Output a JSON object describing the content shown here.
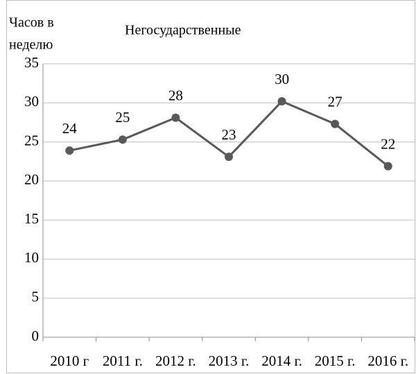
{
  "chart_data": {
    "type": "line",
    "title": "Негосударственные",
    "ylabel_lines": [
      "Часов в",
      "неделю"
    ],
    "categories": [
      "2010 г",
      "2011 г.",
      "2012 г.",
      "2013 г.",
      "2014 г.",
      "2015 г.",
      "2016 г."
    ],
    "series": [
      {
        "name": "Негосударственные",
        "color": "#595959",
        "values": [
          23.9,
          25.3,
          28.1,
          23.1,
          30.2,
          27.3,
          21.9
        ],
        "value_labels": [
          "24",
          "25",
          "28",
          "23",
          "30",
          "27",
          "22"
        ]
      }
    ],
    "ylim": [
      0,
      35
    ],
    "yticks": [
      0,
      5,
      10,
      15,
      20,
      25,
      30,
      35
    ],
    "grid": true
  }
}
